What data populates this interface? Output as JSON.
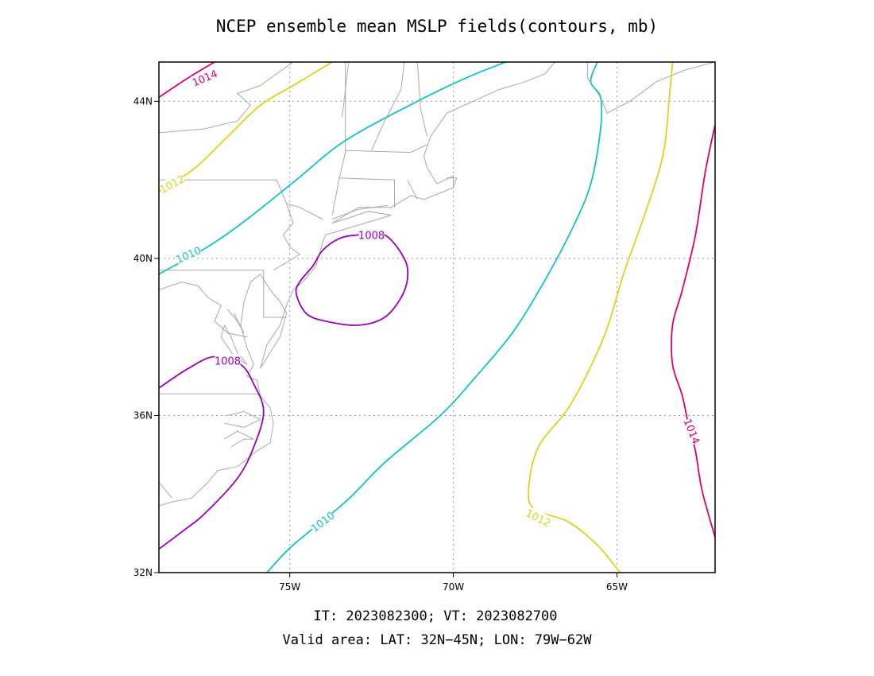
{
  "title": "NCEP ensemble mean MSLP fields(contours, mb)",
  "footer": {
    "line1": "IT: 2023082300; VT: 2023082700",
    "line2": "Valid area: LAT: 32N−45N; LON: 79W−62W"
  },
  "map": {
    "lon_range": [
      -79,
      -62
    ],
    "lat_range": [
      32,
      45
    ],
    "lon_ticks": [
      {
        "lon": -75,
        "label": "75W"
      },
      {
        "lon": -70,
        "label": "70W"
      },
      {
        "lon": -65,
        "label": "65W"
      }
    ],
    "lat_ticks": [
      {
        "lat": 32,
        "label": "32N"
      },
      {
        "lat": 36,
        "label": "36N"
      },
      {
        "lat": 40,
        "label": "40N"
      },
      {
        "lat": 44,
        "label": "44N"
      }
    ],
    "grid": true
  },
  "colors": {
    "1008": "#9900bb",
    "1010": "#11c4c4",
    "1012": "#e0d21a",
    "1014": "#e0006e",
    "coast": "#a8a8a8",
    "frame": "#000000"
  },
  "contours": [
    {
      "level": "1014",
      "label": "1014",
      "label_at": [
        -77.6,
        44.6
      ],
      "label_angle": -23,
      "points": [
        [
          -79.0,
          44.1
        ],
        [
          -78.1,
          44.6
        ],
        [
          -77.3,
          45.0
        ]
      ]
    },
    {
      "level": "1012",
      "label": "1012",
      "label_at": [
        -78.6,
        41.9
      ],
      "label_angle": -28,
      "points": [
        [
          -79.0,
          41.7
        ],
        [
          -77.9,
          42.3
        ],
        [
          -76.9,
          43.1
        ],
        [
          -75.9,
          43.9
        ],
        [
          -74.9,
          44.4
        ],
        [
          -73.7,
          45.0
        ]
      ]
    },
    {
      "level": "1010",
      "label": "1010",
      "label_at": [
        -78.1,
        40.1
      ],
      "label_angle": -24,
      "points": [
        [
          -79.0,
          39.6
        ],
        [
          -77.5,
          40.3
        ],
        [
          -76.3,
          41.0
        ],
        [
          -74.8,
          42.0
        ],
        [
          -73.3,
          43.0
        ],
        [
          -71.1,
          44.0
        ],
        [
          -69.6,
          44.6
        ],
        [
          -68.4,
          45.0
        ]
      ]
    },
    {
      "level": "1010",
      "label": "1010",
      "label_at": [
        -74.0,
        33.3
      ],
      "label_angle": -37,
      "points": [
        [
          -75.7,
          32.0
        ],
        [
          -74.9,
          32.7
        ],
        [
          -73.3,
          33.8
        ],
        [
          -72.1,
          34.8
        ],
        [
          -70.4,
          36.0
        ],
        [
          -69.3,
          37.0
        ],
        [
          -68.2,
          38.1
        ],
        [
          -67.3,
          39.3
        ],
        [
          -66.4,
          40.7
        ],
        [
          -65.8,
          41.9
        ],
        [
          -65.5,
          43.3
        ],
        [
          -65.5,
          44.1
        ],
        [
          -65.8,
          44.5
        ],
        [
          -65.6,
          45.0
        ]
      ]
    },
    {
      "level": "1012",
      "label": "1012",
      "label_at": [
        -67.4,
        33.4
      ],
      "label_angle": 27,
      "points": [
        [
          -64.9,
          32.0
        ],
        [
          -65.6,
          32.7
        ],
        [
          -66.5,
          33.3
        ],
        [
          -67.5,
          33.6
        ],
        [
          -67.7,
          34.1
        ],
        [
          -67.4,
          35.2
        ],
        [
          -66.4,
          36.3
        ],
        [
          -65.4,
          38.0
        ],
        [
          -64.8,
          39.6
        ],
        [
          -64.2,
          41.0
        ],
        [
          -63.6,
          42.6
        ],
        [
          -63.4,
          44.1
        ],
        [
          -63.3,
          45.0
        ]
      ]
    },
    {
      "level": "1014",
      "label": "1014",
      "label_at": [
        -62.7,
        35.6
      ],
      "label_angle": 68,
      "points": [
        [
          -62.0,
          32.9
        ],
        [
          -62.4,
          34.1
        ],
        [
          -62.6,
          35.1
        ],
        [
          -62.8,
          35.7
        ],
        [
          -63.0,
          36.5
        ],
        [
          -63.3,
          37.3
        ],
        [
          -63.3,
          38.3
        ],
        [
          -63.0,
          39.2
        ],
        [
          -62.6,
          40.6
        ],
        [
          -62.3,
          42.2
        ],
        [
          -62.0,
          43.4
        ]
      ]
    },
    {
      "level": "1008",
      "label": "1008",
      "label_at": [
        -72.5,
        40.6
      ],
      "label_angle": 0,
      "closed": true,
      "points": [
        [
          -72.1,
          40.6
        ],
        [
          -71.5,
          40.0
        ],
        [
          -71.4,
          39.5
        ],
        [
          -71.6,
          39.0
        ],
        [
          -72.1,
          38.5
        ],
        [
          -72.9,
          38.3
        ],
        [
          -73.9,
          38.4
        ],
        [
          -74.5,
          38.6
        ],
        [
          -74.8,
          39.1
        ],
        [
          -74.7,
          39.4
        ],
        [
          -74.3,
          39.8
        ],
        [
          -74.0,
          40.2
        ],
        [
          -73.5,
          40.5
        ],
        [
          -72.9,
          40.6
        ]
      ]
    },
    {
      "level": "1008",
      "label": "1008",
      "label_at": [
        -76.9,
        37.4
      ],
      "label_angle": 0,
      "points": [
        [
          -79.0,
          36.7
        ],
        [
          -78.1,
          37.2
        ],
        [
          -77.3,
          37.5
        ],
        [
          -76.5,
          37.3
        ],
        [
          -76.1,
          36.8
        ],
        [
          -75.8,
          36.1
        ],
        [
          -76.1,
          35.2
        ],
        [
          -76.6,
          34.4
        ],
        [
          -77.6,
          33.5
        ],
        [
          -78.2,
          33.1
        ],
        [
          -79.0,
          32.6
        ]
      ]
    }
  ]
}
